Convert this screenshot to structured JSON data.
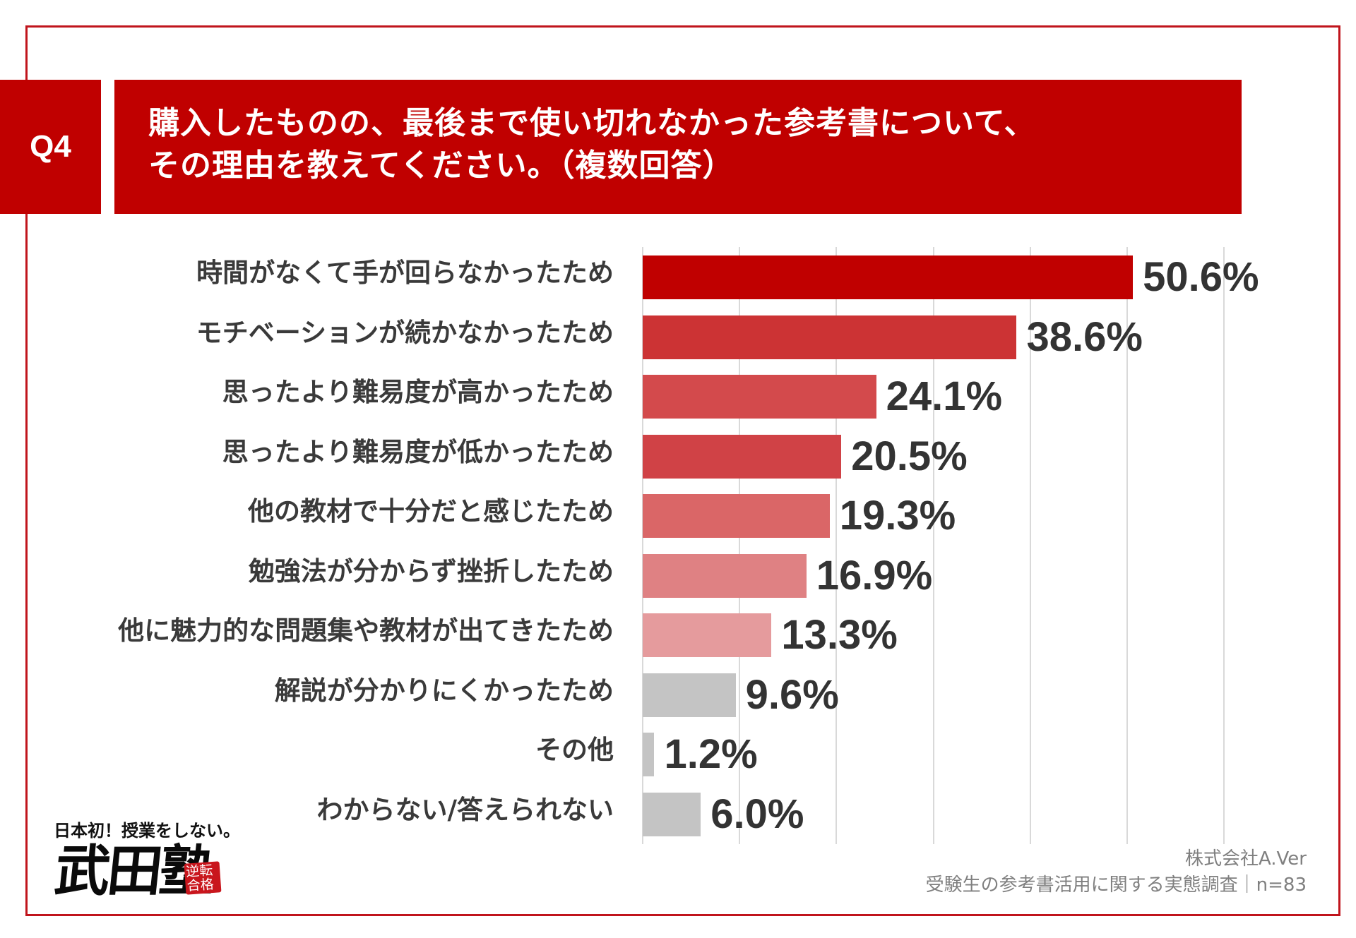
{
  "header": {
    "question_tag": "Q4",
    "title_line1": "購入したものの、最後まで使い切れなかった参考書について、",
    "title_line2": "その理由を教えてください。（複数回答）"
  },
  "chart_data": {
    "type": "bar",
    "orientation": "horizontal",
    "categories": [
      "時間がなくて手が回らなかったため",
      "モチベーションが続かなかったため",
      "思ったより難易度が高かったため",
      "思ったより難易度が低かったため",
      "他の教材で十分だと感じたため",
      "勉強法が分からず挫折したため",
      "他に魅力的な問題集や教材が出てきたため",
      "解説が分かりにくかったため",
      "その他",
      "わからない/答えられない"
    ],
    "values": [
      50.6,
      38.6,
      24.1,
      20.5,
      19.3,
      16.9,
      13.3,
      9.6,
      1.2,
      6.0
    ],
    "value_labels": [
      "50.6%",
      "38.6%",
      "24.1%",
      "20.5%",
      "19.3%",
      "16.9%",
      "13.3%",
      "9.6%",
      "1.2%",
      "6.0%"
    ],
    "bar_colors": [
      "#c00000",
      "#cc3334",
      "#d34a4c",
      "#d04246",
      "#da6667",
      "#df8183",
      "#e59b9d",
      "#c4c4c4",
      "#c4c4c4",
      "#c4c4c4"
    ],
    "xlim": [
      0,
      60
    ],
    "grid_step": 10,
    "grid": true,
    "xlabel": "",
    "ylabel": ""
  },
  "credit": {
    "company": "株式会社A.Ver",
    "survey": "受験生の参考書活用に関する実態調査｜n=83"
  },
  "logo": {
    "tagline": "日本初！授業をしない。",
    "name": "武田塾",
    "seal_text": "逆転合格"
  },
  "colors": {
    "accent": "#c00000",
    "border": "#c0141c",
    "gridline": "#d9d9d9",
    "gray_bar": "#c4c4c4"
  }
}
